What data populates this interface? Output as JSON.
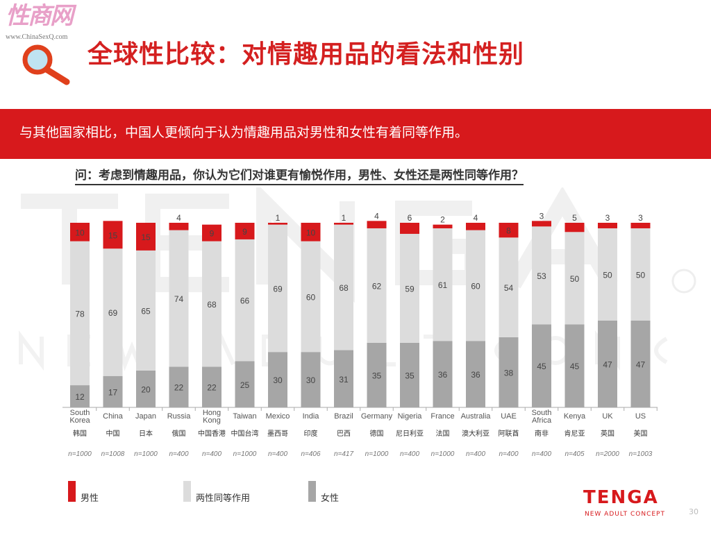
{
  "header": {
    "site_logo": "性商网",
    "site_url": "www.ChinaSexQ.com",
    "title": "全球性比较：对情趣用品的看法和性别"
  },
  "banner": "与其他国家相比，中国人更倾向于认为情趣用品对男性和女性有着同等作用。",
  "question": "问：考虑到情趣用品，你认为它们对谁更有愉悦作用，男性、女性还是两性同等作用？",
  "watermark": {
    "brand": "TENGA",
    "tagline": "NEW ADULT CONCEPT",
    "mark": "®"
  },
  "colors": {
    "male": "#d7191c",
    "equal": "#dcdcdc",
    "female": "#a6a6a6"
  },
  "chart_data": {
    "type": "bar",
    "stacked": true,
    "percent": true,
    "categories": [
      "South Korea",
      "China",
      "Japan",
      "Russia",
      "Hong Kong",
      "Taiwan",
      "Mexico",
      "India",
      "Brazil",
      "Germany",
      "Nigeria",
      "France",
      "Australia",
      "UAE",
      "South Africa",
      "Kenya",
      "UK",
      "US"
    ],
    "categories_cn": [
      "韩国",
      "中国",
      "日本",
      "俄国",
      "中国香港",
      "中国台湾",
      "墨西哥",
      "印度",
      "巴西",
      "德国",
      "尼日利亚",
      "法国",
      "澳大利亚",
      "阿联酋",
      "南非",
      "肯尼亚",
      "英国",
      "美国"
    ],
    "sample_sizes": [
      "n=1000",
      "n=1008",
      "n=1000",
      "n=400",
      "n=400",
      "n=1000",
      "n=400",
      "n=406",
      "n=417",
      "n=1000",
      "n=400",
      "n=1000",
      "n=400",
      "n=400",
      "n=400",
      "n=405",
      "n=2000",
      "n=1003"
    ],
    "series": [
      {
        "name": "女性",
        "values": [
          12,
          17,
          20,
          22,
          22,
          25,
          30,
          30,
          31,
          35,
          35,
          36,
          36,
          38,
          45,
          45,
          47,
          47
        ]
      },
      {
        "name": "两性同等作用",
        "values": [
          78,
          69,
          65,
          74,
          68,
          66,
          69,
          60,
          68,
          62,
          59,
          61,
          60,
          54,
          53,
          50,
          50,
          50
        ]
      },
      {
        "name": "男性",
        "values": [
          10,
          15,
          15,
          4,
          9,
          9,
          1,
          10,
          1,
          4,
          6,
          2,
          4,
          8,
          3,
          5,
          3,
          3
        ]
      }
    ],
    "legend": [
      "男性",
      "两性同等作用",
      "女性"
    ],
    "legend_position": "bottom-left"
  },
  "footer": {
    "logo": "TENGA",
    "tagline": "NEW ADULT CONCEPT",
    "page": "30"
  }
}
